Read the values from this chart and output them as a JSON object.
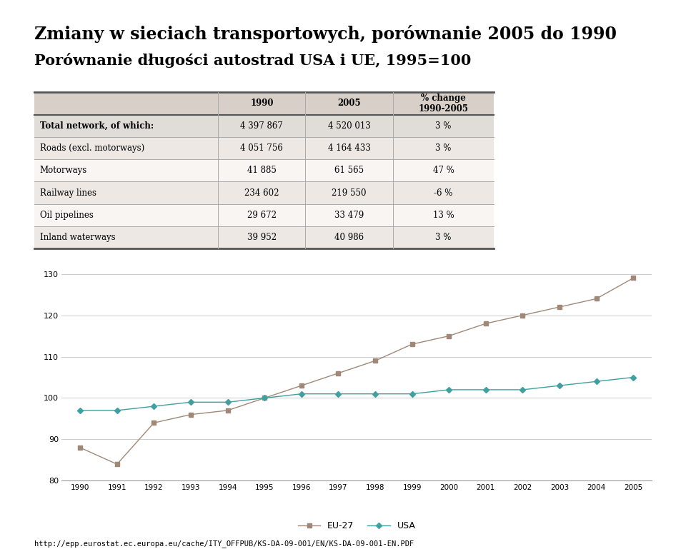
{
  "title_line1": "Zmiany w sieciach transportowych, porównanie 2005 do 1990",
  "title_line2": "Porównanie długości autostrad USA i UE, 1995=100",
  "table_headers": [
    "",
    "1990",
    "2005",
    "% change\n1990-2005"
  ],
  "table_rows": [
    [
      "Total network, of which:",
      "4 397 867",
      "4 520 013",
      "3 %"
    ],
    [
      "Roads (excl. motorways)",
      "4 051 756",
      "4 164 433",
      "3 %"
    ],
    [
      "Motorways",
      "41 885",
      "61 565",
      "47 %"
    ],
    [
      "Railway lines",
      "234 602",
      "219 550",
      "-6 %"
    ],
    [
      "Oil pipelines",
      "29 672",
      "33 479",
      "13 %"
    ],
    [
      "Inland waterways",
      "39 952",
      "40 986",
      "3 %"
    ]
  ],
  "years": [
    1990,
    1991,
    1992,
    1993,
    1994,
    1995,
    1996,
    1997,
    1998,
    1999,
    2000,
    2001,
    2002,
    2003,
    2004,
    2005
  ],
  "eu27": [
    88,
    84,
    94,
    96,
    97,
    100,
    103,
    106,
    109,
    113,
    115,
    118,
    120,
    122,
    124,
    129
  ],
  "usa": [
    97,
    97,
    98,
    99,
    99,
    100,
    101,
    101,
    101,
    101,
    102,
    102,
    102,
    103,
    104,
    105
  ],
  "eu27_color": "#a08878",
  "usa_color": "#40a0a0",
  "table_header_bg": "#d8d0c8",
  "table_row0_bg": "#e0dcd8",
  "table_row_odd_bg": "#ede8e4",
  "table_row_even_bg": "#f8f5f2",
  "url_text": "http://epp.eurostat.ec.europa.eu/cache/ITY_OFFPUB/KS-DA-09-001/EN/KS-DA-09-001-EN.PDF",
  "ylim": [
    80,
    130
  ],
  "yticks": [
    80,
    90,
    100,
    110,
    120,
    130
  ],
  "title_fontsize": 17,
  "subtitle_fontsize": 15
}
